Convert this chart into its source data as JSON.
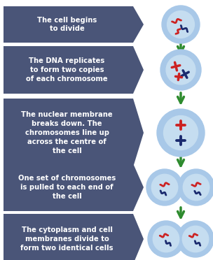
{
  "bg_color": "#ffffff",
  "box_color": "#4a5578",
  "box_text_color": "#ffffff",
  "arrow_color": "#2e8b2e",
  "cell_outer_color": "#a8c8e8",
  "cell_inner_color": "#c5ddf0",
  "chrom_red": "#cc2222",
  "chrom_blue": "#1a2a6e",
  "steps": [
    "The cell begins\nto divide",
    "The DNA replicates\nto form two copies\nof each chromosome",
    "The nuclear membrane\nbreaks down. The\nchromosomes line up\nacross the centre of\nthe cell",
    "One set of chromosomes\nis pulled to each end of\nthe cell",
    "The cytoplasm and cell\nmembranes divide to\nform two identical cells"
  ],
  "fig_width": 3.04,
  "fig_height": 3.72
}
